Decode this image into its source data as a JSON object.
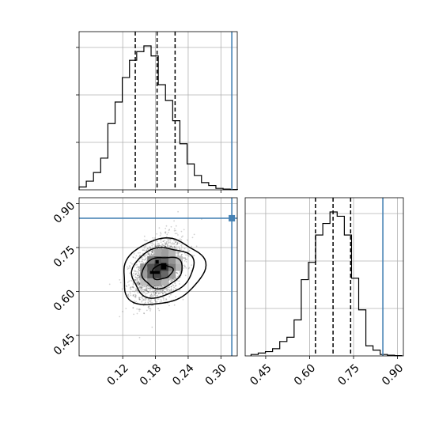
{
  "chart_data": {
    "type": "corner",
    "title": "",
    "parameters": [
      {
        "truth": 0.32,
        "quantiles": [
          0.143,
          0.183,
          0.216
        ],
        "range": [
          0.04,
          0.33
        ],
        "ticks": [
          "0.12",
          "0.18",
          "0.24",
          "0.30"
        ]
      },
      {
        "truth": 0.85,
        "quantiles": [
          0.62,
          0.68,
          0.74
        ],
        "range": [
          0.38,
          0.92
        ],
        "ticks": [
          "0.45",
          "0.60",
          "0.75",
          "0.90"
        ]
      }
    ],
    "panels": [
      {
        "type": "histogram",
        "parameter": 0,
        "bin_edges": [
          0.04,
          0.0532,
          0.0664,
          0.0796,
          0.0928,
          0.106,
          0.1192,
          0.1324,
          0.1456,
          0.1588,
          0.172,
          0.1852,
          0.1984,
          0.2116,
          0.2248,
          0.238,
          0.2512,
          0.2644,
          0.2776,
          0.2908,
          0.304,
          0.3172,
          0.3304
        ],
        "counts": [
          0.02,
          0.06,
          0.12,
          0.22,
          0.46,
          0.61,
          0.78,
          0.9,
          0.96,
          1.0,
          0.93,
          0.73,
          0.62,
          0.48,
          0.32,
          0.18,
          0.1,
          0.05,
          0.03,
          0.01,
          0.005,
          0.002
        ]
      },
      {
        "type": "histogram",
        "parameter": 1,
        "bin_edges": [
          0.4,
          0.4245,
          0.449,
          0.4735,
          0.498,
          0.5225,
          0.547,
          0.5715,
          0.596,
          0.6205,
          0.645,
          0.6695,
          0.694,
          0.7185,
          0.743,
          0.7675,
          0.792,
          0.8165,
          0.841,
          0.8655,
          0.89,
          0.9145
        ],
        "counts": [
          0.01,
          0.02,
          0.03,
          0.05,
          0.1,
          0.13,
          0.25,
          0.53,
          0.65,
          0.84,
          0.92,
          1.0,
          0.97,
          0.84,
          0.54,
          0.32,
          0.07,
          0.04,
          0.01,
          0.005,
          0.002
        ]
      },
      {
        "type": "2d-density",
        "x_parameter": 0,
        "y_parameter": 1,
        "center": [
          0.185,
          0.675
        ],
        "sigma": [
          0.022,
          0.052
        ],
        "correlation": 0.35,
        "levels": [
          0.39,
          0.86,
          1.0
        ]
      }
    ]
  }
}
